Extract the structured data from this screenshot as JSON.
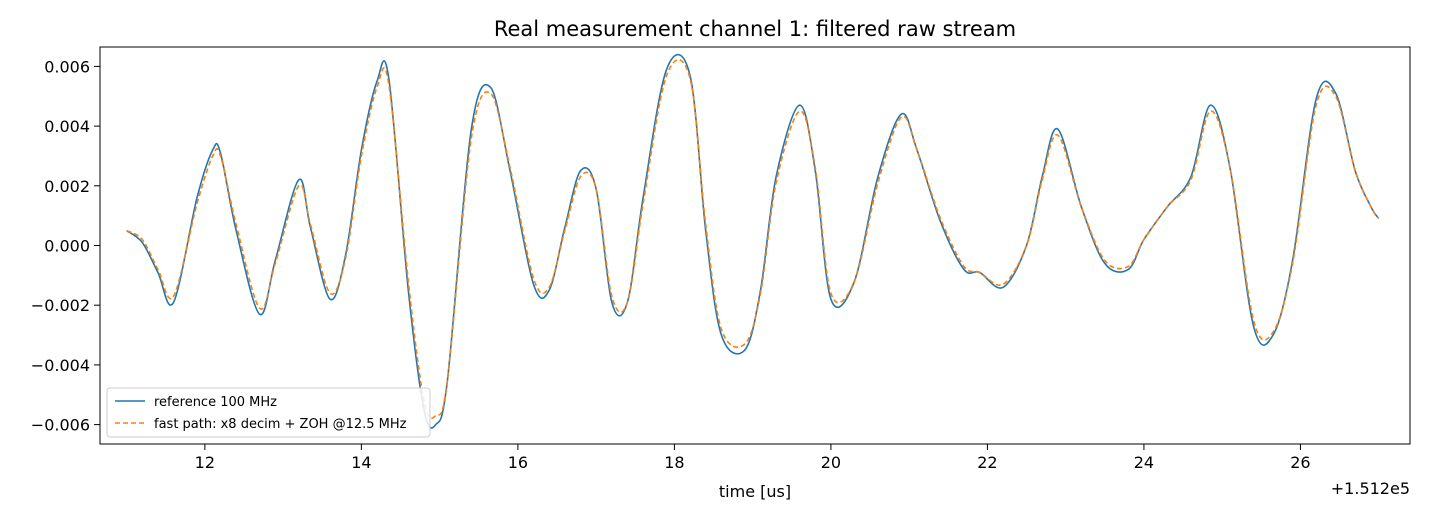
{
  "chart_data": {
    "type": "line",
    "title": "Real measurement channel 1: filtered raw stream",
    "xlabel": "time [us]",
    "ylabel": "",
    "x_offset_label": "+1.512e5",
    "xlim": [
      10.66,
      27.4
    ],
    "ylim": [
      -0.00665,
      0.00665
    ],
    "x_ticks": [
      12,
      14,
      16,
      18,
      20,
      22,
      24,
      26
    ],
    "x_tick_labels": [
      "12",
      "14",
      "16",
      "18",
      "20",
      "22",
      "24",
      "26"
    ],
    "y_ticks": [
      -0.006,
      -0.004,
      -0.002,
      0.0,
      0.002,
      0.004,
      0.006
    ],
    "y_tick_labels": [
      "−0.006",
      "−0.004",
      "−0.002",
      "0.000",
      "0.002",
      "0.004",
      "0.006"
    ],
    "grid": false,
    "legend_position": "lower-left",
    "series": [
      {
        "name": "reference 100 MHz",
        "color": "#1f77b4",
        "style": "solid",
        "x": [
          11.0,
          11.2,
          11.4,
          11.6,
          11.9,
          12.1,
          12.2,
          12.4,
          12.7,
          12.9,
          13.2,
          13.35,
          13.6,
          13.8,
          14.0,
          14.2,
          14.35,
          14.6,
          14.8,
          14.95,
          15.1,
          15.4,
          15.65,
          15.9,
          16.2,
          16.4,
          16.6,
          16.8,
          17.0,
          17.2,
          17.4,
          17.6,
          17.9,
          18.2,
          18.4,
          18.6,
          18.9,
          19.1,
          19.3,
          19.6,
          19.8,
          20.0,
          20.3,
          20.6,
          20.9,
          21.1,
          21.4,
          21.7,
          21.9,
          22.2,
          22.5,
          22.7,
          22.9,
          23.2,
          23.5,
          23.8,
          24.0,
          24.3,
          24.6,
          24.85,
          25.1,
          25.4,
          25.65,
          25.9,
          26.2,
          26.45,
          26.7,
          26.9,
          27.0
        ],
        "values": [
          0.0005,
          0.0001,
          -0.0009,
          -0.0019,
          0.0016,
          0.0032,
          0.0031,
          0.0005,
          -0.0023,
          -0.0005,
          0.0022,
          0.0006,
          -0.0018,
          -0.0003,
          0.0032,
          0.0055,
          0.0056,
          -0.0015,
          -0.0055,
          -0.006,
          -0.0045,
          0.0038,
          0.0053,
          0.0025,
          -0.0013,
          -0.0015,
          0.0006,
          0.0025,
          0.0019,
          -0.0019,
          -0.0019,
          0.0016,
          0.0059,
          0.0057,
          0.0005,
          -0.003,
          -0.0035,
          -0.0015,
          0.0023,
          0.0047,
          0.0025,
          -0.0018,
          -0.0012,
          0.0023,
          0.0044,
          0.0032,
          0.0008,
          -0.0008,
          -0.0009,
          -0.0014,
          0.0,
          0.0023,
          0.0039,
          0.0013,
          -0.0006,
          -0.0008,
          0.0002,
          0.0013,
          0.0023,
          0.0047,
          0.0026,
          -0.0027,
          -0.003,
          -0.0005,
          0.0049,
          0.0051,
          0.0025,
          0.0013,
          0.0009
        ]
      },
      {
        "name": "fast path: x8 decim + ZOH @12.5 MHz",
        "color": "#ff7f0e",
        "style": "dashed",
        "x": [
          11.0,
          11.2,
          11.4,
          11.6,
          11.9,
          12.1,
          12.2,
          12.4,
          12.7,
          12.9,
          13.2,
          13.35,
          13.6,
          13.8,
          14.0,
          14.2,
          14.35,
          14.6,
          14.8,
          14.95,
          15.1,
          15.4,
          15.65,
          15.9,
          16.2,
          16.4,
          16.6,
          16.8,
          17.0,
          17.2,
          17.4,
          17.6,
          17.9,
          18.2,
          18.4,
          18.6,
          18.9,
          19.1,
          19.3,
          19.6,
          19.8,
          20.0,
          20.3,
          20.6,
          20.9,
          21.1,
          21.4,
          21.7,
          21.9,
          22.2,
          22.5,
          22.7,
          22.9,
          23.2,
          23.5,
          23.8,
          24.0,
          24.3,
          24.6,
          24.85,
          25.1,
          25.4,
          25.65,
          25.9,
          26.2,
          26.45,
          26.7,
          26.9,
          27.0
        ],
        "values": [
          0.0005,
          0.0002,
          -0.0008,
          -0.0017,
          0.0014,
          0.003,
          0.003,
          0.0007,
          -0.0021,
          -0.0006,
          0.002,
          0.0007,
          -0.0016,
          -0.0004,
          0.003,
          0.0053,
          0.0054,
          -0.0012,
          -0.0052,
          -0.0057,
          -0.0045,
          0.0035,
          0.0051,
          0.0026,
          -0.0011,
          -0.0014,
          0.0005,
          0.0023,
          0.0019,
          -0.0017,
          -0.0019,
          0.0014,
          0.0057,
          0.0056,
          0.0007,
          -0.0028,
          -0.0033,
          -0.0016,
          0.0021,
          0.0045,
          0.0026,
          -0.0016,
          -0.0012,
          0.0021,
          0.0043,
          0.0032,
          0.0009,
          -0.0007,
          -0.0009,
          -0.0013,
          0.0,
          0.0022,
          0.0037,
          0.0013,
          -0.0005,
          -0.0007,
          0.0002,
          0.0013,
          0.0022,
          0.0045,
          0.0026,
          -0.0025,
          -0.0029,
          -0.0006,
          0.0047,
          0.005,
          0.0025,
          0.0013,
          0.0009
        ]
      }
    ]
  }
}
